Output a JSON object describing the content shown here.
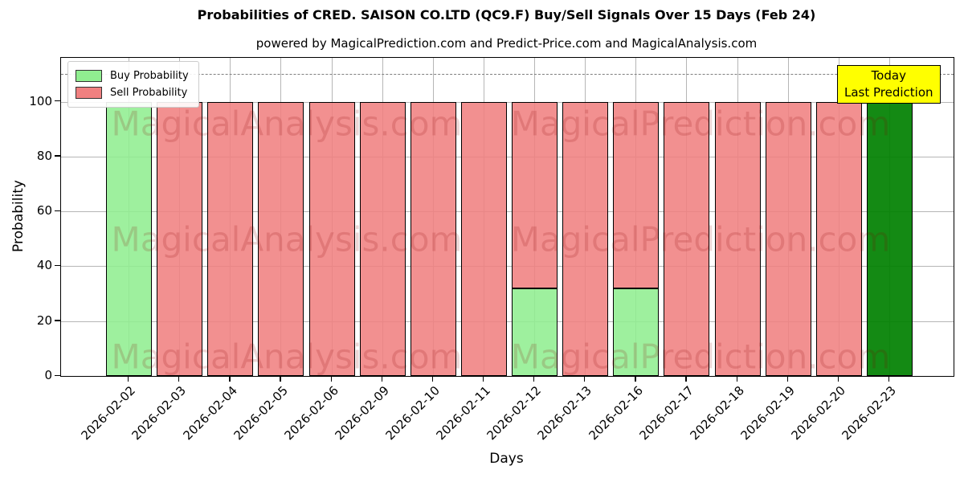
{
  "chart_data": {
    "type": "bar",
    "stacked": true,
    "title": "Probabilities of CRED. SAISON CO.LTD (QC9.F) Buy/Sell Signals Over 15 Days (Feb 24)",
    "subtitle": "powered by MagicalPrediction.com and Predict-Price.com and MagicalAnalysis.com",
    "xlabel": "Days",
    "ylabel": "Probability",
    "ylim": [
      0,
      116
    ],
    "yticks": [
      0,
      20,
      40,
      60,
      80,
      100
    ],
    "grid": true,
    "dashed_line_y": 110,
    "categories": [
      "2026-02-02",
      "2026-02-03",
      "2026-02-04",
      "2026-02-05",
      "2026-02-06",
      "2026-02-09",
      "2026-02-10",
      "2026-02-11",
      "2026-02-12",
      "2026-02-13",
      "2026-02-16",
      "2026-02-17",
      "2026-02-18",
      "2026-02-19",
      "2026-02-20",
      "2026-02-23"
    ],
    "series": [
      {
        "name": "Buy Probability",
        "color": "#90ee90",
        "values": [
          100,
          0,
          0,
          0,
          0,
          0,
          0,
          0,
          32,
          0,
          32,
          0,
          0,
          0,
          0,
          0
        ]
      },
      {
        "name": "Sell Probability",
        "color": "#f08080",
        "values": [
          0,
          100,
          100,
          100,
          100,
          100,
          100,
          100,
          68,
          100,
          68,
          100,
          100,
          100,
          100,
          0
        ]
      },
      {
        "name": "Today Prediction",
        "color": "#008000",
        "values": [
          0,
          0,
          0,
          0,
          0,
          0,
          0,
          0,
          0,
          0,
          0,
          0,
          0,
          0,
          0,
          100
        ]
      }
    ],
    "legend": {
      "position": "upper-left",
      "entries": [
        {
          "label": "Buy Probability",
          "color": "#90ee90"
        },
        {
          "label": "Sell Probability",
          "color": "#f08080"
        }
      ]
    },
    "annotation": {
      "lines": [
        "Today",
        "Last Prediction"
      ],
      "bg_color": "#ffff00"
    },
    "watermarks": [
      "MagicalAnalysis.com",
      "MagicalPrediction.com"
    ]
  }
}
